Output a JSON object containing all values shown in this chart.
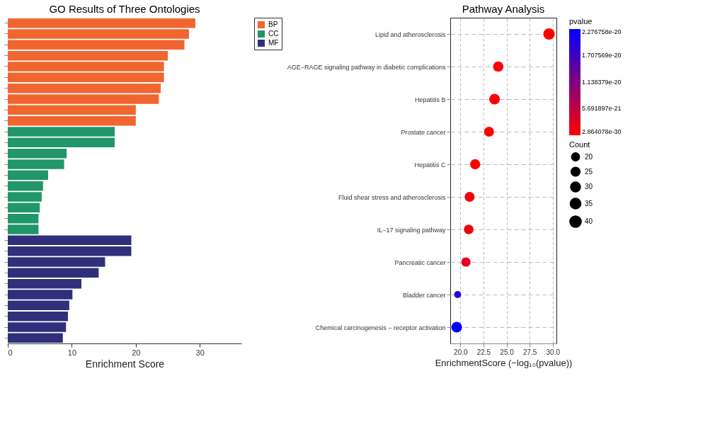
{
  "chart_data": [
    {
      "type": "bar",
      "orientation": "horizontal",
      "title": "GO Results of Three Ontologies",
      "xlabel": "Enrichment Score",
      "categories": [
        null,
        null,
        null,
        null,
        null,
        null,
        null,
        null,
        null,
        null,
        null,
        null,
        null,
        null,
        null,
        null,
        null,
        null,
        null,
        null,
        null,
        null,
        null,
        null,
        null,
        null,
        null,
        null,
        null,
        null
      ],
      "series": [
        {
          "name": "BP",
          "color": "#f1652f",
          "values": [
            29.3,
            28.3,
            27.6,
            25.0,
            24.4,
            24.4,
            23.9,
            23.6,
            20.0,
            20.0,
            null,
            null,
            null,
            null,
            null,
            null,
            null,
            null,
            null,
            null,
            null,
            null,
            null,
            null,
            null,
            null,
            null,
            null,
            null,
            null
          ]
        },
        {
          "name": "CC",
          "color": "#21966a",
          "values": [
            null,
            null,
            null,
            null,
            null,
            null,
            null,
            null,
            null,
            null,
            16.7,
            16.7,
            9.2,
            8.8,
            6.3,
            5.5,
            5.3,
            5.0,
            4.8,
            4.8,
            null,
            null,
            null,
            null,
            null,
            null,
            null,
            null,
            null,
            null
          ]
        },
        {
          "name": "MF",
          "color": "#2f2f7c",
          "values": [
            null,
            null,
            null,
            null,
            null,
            null,
            null,
            null,
            null,
            null,
            null,
            null,
            null,
            null,
            null,
            null,
            null,
            null,
            null,
            null,
            19.3,
            19.3,
            15.2,
            14.2,
            11.5,
            10.1,
            9.6,
            9.4,
            9.1,
            8.6
          ]
        }
      ],
      "xlim": [
        0,
        36.5
      ],
      "xticks": [
        0,
        10,
        20,
        30
      ],
      "stacked": true,
      "grid": false,
      "legend": "right",
      "tick_labels": "x"
    },
    {
      "type": "bubble",
      "title": "Pathway Analysis",
      "xlabel": "EnrichmentScore (−log₁₀(pvalue))",
      "legend_title": "Count",
      "clabel": "pvalue",
      "categories": [
        "Lipid and atherosclerosis",
        "AGE−RAGE signaling pathway in diabetic complications",
        "Hepatitis B",
        "Prostate cancer",
        "Hepatitis C",
        "Fluid shear stress and atherosclerosis",
        "IL−17 signaling pathway",
        "Pancreatic cancer",
        "Bladder cancer",
        "Chemical carcinogenesis − receptor activation"
      ],
      "values": [
        29.6,
        24.1,
        23.7,
        23.1,
        21.6,
        21.0,
        20.9,
        20.6,
        19.7,
        19.6
      ],
      "sizes": [
        40,
        33,
        35,
        30,
        32,
        30,
        29,
        27,
        15,
        35
      ],
      "size_legend": [
        20,
        25,
        30,
        35,
        40
      ],
      "cvalues": [
        2.864078e-30,
        8e-25,
        2e-24,
        8e-24,
        2.5e-22,
        1e-21,
        1.3e-21,
        2.5e-21,
        1.9e-20,
        2.276758e-20
      ],
      "clim": [
        2.864078e-30,
        2.276758e-20
      ],
      "cticks": [
        {
          "value": 2.276758e-20,
          "label": "2.276758e-20"
        },
        {
          "value": 1.707569e-20,
          "label": "1.707569e-20"
        },
        {
          "value": 1.138379e-20,
          "label": "1.138379e-20"
        },
        {
          "value": 5.691897e-21,
          "label": "5.691897e-21"
        },
        {
          "value": 2.864078e-30,
          "label": "2.864078e-30"
        }
      ],
      "xlim": [
        18.9,
        30.4
      ],
      "xticks": [
        {
          "value": 20,
          "label": "20.0"
        },
        22.5,
        {
          "value": 25,
          "label": "25.0"
        },
        27.5,
        {
          "value": 30,
          "label": "30.0"
        }
      ],
      "orientation": "horizontal",
      "grid": true
    }
  ]
}
